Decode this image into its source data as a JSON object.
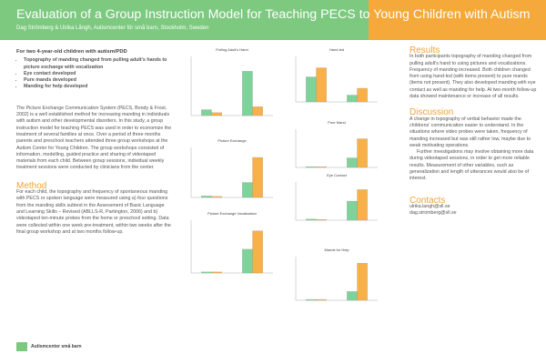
{
  "header": {
    "title": "Evaluation of a Group Instruction Model for Teaching PECS to Young Children with Autism",
    "authors": "Dag Strömberg & Ulrika Långh, Autismcenter för små barn, Stockholm, Sweden"
  },
  "intro": {
    "lead": "For two 4-year-old children with autism/PDD",
    "bullets": [
      "Topography of manding changed from pulling adult's hands to picture exchange with vocalization",
      "Eye contact developed",
      "Pure mands developed",
      "Manding for help developed"
    ],
    "text": "The Picture Exchange Communication System (PECS, Bondy & Frost, 2002) is a well established method for increasing manding in individuals with autism and other developmental disorders. In this study, a group instruction model for teaching PECS was used in order to economize the treatment of several families at once. Over a period of three months parents and preschool teachers attended three group workshops at the Autism Center for Young Children. The group workshops consisted of information, modelling, guided practice and sharing of videotaped materials from each child. Between group sessions, individual weekly treatment sessions were conducted by clinicians from the center."
  },
  "method": {
    "heading": "Method",
    "text": "For each child, the topography and frequency of spontaneous manding with PECS or spoken language were measured using a) four questions from the manding skills subtest in the Assessment of Basic Language and Learning Skills – Revised (ABLLS-R, Partington, 2006) and b) videotaped ten-minute probes from the home or preschool setting. Data were collected within one week pre-treatment, within two weeks after the final group workshop and at two months follow-up."
  },
  "charts": [
    {
      "type": "bar",
      "title": "Pulling Adult's Hand",
      "ylim": [
        0,
        100
      ],
      "series": [
        {
          "color": "#7fd39a",
          "values": [
            10,
            75
          ]
        },
        {
          "color": "#f7b04a",
          "values": [
            5,
            15
          ]
        }
      ]
    },
    {
      "type": "bar",
      "title": "Picture Exchange",
      "ylim": [
        0,
        100
      ],
      "series": [
        {
          "color": "#7fd39a",
          "values": [
            3,
            30
          ]
        },
        {
          "color": "#f7b04a",
          "values": [
            2,
            80
          ]
        }
      ]
    },
    {
      "type": "bar",
      "title": "Picture Exchange Vocalization",
      "ylim": [
        0,
        100
      ],
      "series": [
        {
          "color": "#7fd39a",
          "values": [
            2,
            45
          ]
        },
        {
          "color": "#f7b04a",
          "values": [
            2,
            80
          ]
        }
      ]
    },
    {
      "type": "bar",
      "title": "Hand-led",
      "ylim": [
        0,
        100
      ],
      "series": [
        {
          "color": "#7fd39a",
          "values": [
            55,
            15
          ]
        },
        {
          "color": "#f7b04a",
          "values": [
            75,
            30
          ]
        }
      ]
    },
    {
      "type": "bar",
      "title": "Pure Mand",
      "ylim": [
        0,
        100
      ],
      "series": [
        {
          "color": "#7fd39a",
          "values": [
            2,
            25
          ]
        },
        {
          "color": "#f7b04a",
          "values": [
            2,
            75
          ]
        }
      ]
    },
    {
      "type": "bar",
      "title": "Eye Contact",
      "ylim": [
        0,
        100
      ],
      "series": [
        {
          "color": "#7fd39a",
          "values": [
            3,
            50
          ]
        },
        {
          "color": "#f7b04a",
          "values": [
            2,
            80
          ]
        }
      ]
    },
    {
      "type": "bar",
      "title": "Mands for Help",
      "ylim": [
        0,
        100
      ],
      "series": [
        {
          "color": "#7fd39a",
          "values": [
            2,
            20
          ]
        },
        {
          "color": "#f7b04a",
          "values": [
            2,
            85
          ]
        }
      ]
    }
  ],
  "results": {
    "heading": "Results",
    "text": "In both participants topography of manding changed from pulling adult's hand to using pictures and vocalizations. Frequency of manding increased. Both children changed from using hand-led (with items present) to pure mands (items not present). They also developed manding with eye contact as well as manding for help. At two-month follow-up data showed maintenance or increase of all results."
  },
  "discussion": {
    "heading": "Discussion",
    "paragraphs": [
      "A change in topography of verbal behavior made the childrens' communication easier to understand. In the situations where video probes were taken, frequency of manding increased but was still rather low, maybe due to weak motivating operations.",
      "Further investigations may involve obtaining more data during videotaped sessions, in order to get more reliable results. Measurement of other variables, such as generalization and length of utterances would also be of interest."
    ]
  },
  "contacts": {
    "heading": "Contacts",
    "emails": [
      "ulrika.langh@sll.se",
      "dag.stromberg@sll.se"
    ]
  },
  "footer": {
    "logo": "Autismcenter små barn"
  }
}
